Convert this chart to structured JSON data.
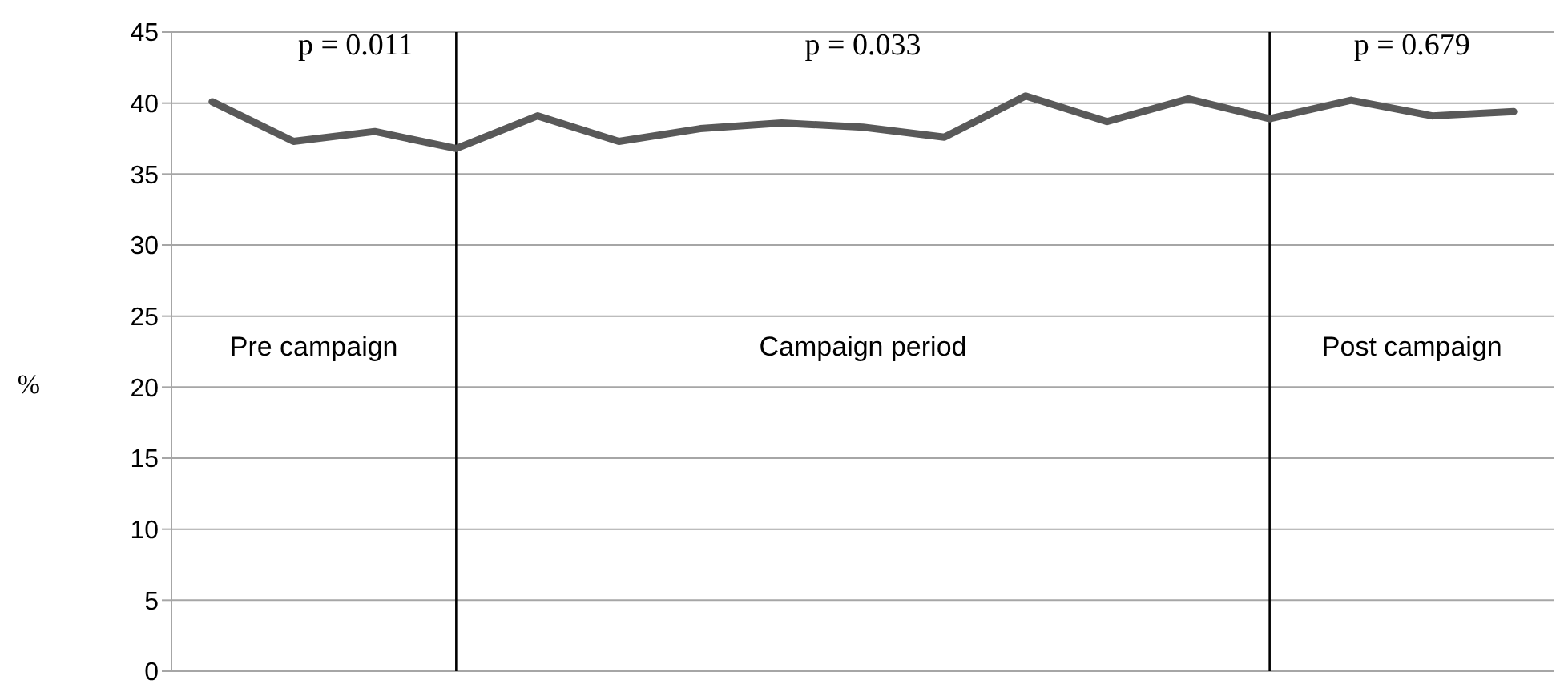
{
  "chart_data": {
    "type": "line",
    "ylabel": "%",
    "categories": [
      null,
      null,
      null,
      null,
      null,
      null,
      null,
      null,
      null,
      null,
      null,
      null,
      null,
      null,
      null,
      null,
      null
    ],
    "values": [
      40.1,
      37.3,
      38.0,
      36.8,
      39.1,
      37.3,
      38.2,
      38.6,
      38.3,
      37.6,
      40.5,
      38.7,
      40.3,
      38.9,
      40.2,
      39.1,
      39.4
    ],
    "color": "#595959",
    "ylim": [
      0,
      45
    ],
    "yticks": [
      0,
      5,
      10,
      15,
      20,
      25,
      30,
      35,
      40,
      45
    ],
    "grid": "y",
    "tick_labels": "y",
    "marker": "none",
    "line_style": "solid",
    "annotations": [
      "p = 0.011",
      "p = 0.033",
      "p = 0.679",
      "Pre campaign",
      "Campaign period",
      "Post campaign"
    ]
  }
}
